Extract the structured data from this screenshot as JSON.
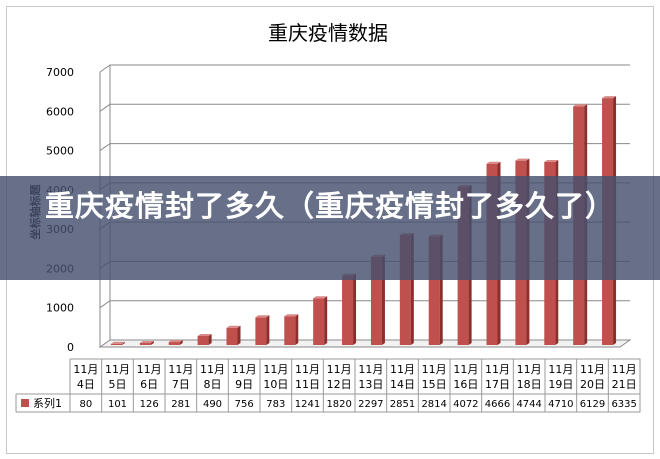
{
  "overlay": {
    "headline": "重庆疫情封了多久（重庆疫情封了多久了）"
  },
  "chart_data": {
    "type": "bar",
    "title": "重庆疫情数据",
    "ylabel": "坐标轴标题",
    "ylim": [
      0,
      7000
    ],
    "yticks": [
      0,
      1000,
      2000,
      3000,
      4000,
      5000,
      6000,
      7000
    ],
    "categories": [
      "11月4日",
      "11月5日",
      "11月6日",
      "11月7日",
      "11月8日",
      "11月9日",
      "11月10日",
      "11月11日",
      "11月12日",
      "11月13日",
      "11月14日",
      "11月15日",
      "11月16日",
      "11月17日",
      "11月18日",
      "11月19日",
      "11月20日",
      "11月21日"
    ],
    "category_lines": [
      [
        "11月",
        "4日"
      ],
      [
        "11月",
        "5日"
      ],
      [
        "11月",
        "6日"
      ],
      [
        "11月",
        "7日"
      ],
      [
        "11月",
        "8日"
      ],
      [
        "11月",
        "9日"
      ],
      [
        "11月",
        "10日"
      ],
      [
        "11月",
        "11日"
      ],
      [
        "11月",
        "12日"
      ],
      [
        "11月",
        "13日"
      ],
      [
        "11月",
        "14日"
      ],
      [
        "11月",
        "15日"
      ],
      [
        "11月",
        "16日"
      ],
      [
        "11月",
        "17日"
      ],
      [
        "11月",
        "18日"
      ],
      [
        "11月",
        "19日"
      ],
      [
        "11月",
        "20日"
      ],
      [
        "11月",
        "21日"
      ]
    ],
    "series": [
      {
        "name": "系列1",
        "values": [
          80,
          101,
          126,
          281,
          490,
          756,
          783,
          1241,
          1820,
          2297,
          2851,
          2814,
          4072,
          4666,
          4744,
          4710,
          6129,
          6335
        ]
      }
    ],
    "grid": true,
    "legend": "data-table",
    "colors": {
      "bar": "#c0504d",
      "bar_dark": "#8c2f2c",
      "bar_top": "#d98a88",
      "grid": "#8a8a8a"
    }
  }
}
